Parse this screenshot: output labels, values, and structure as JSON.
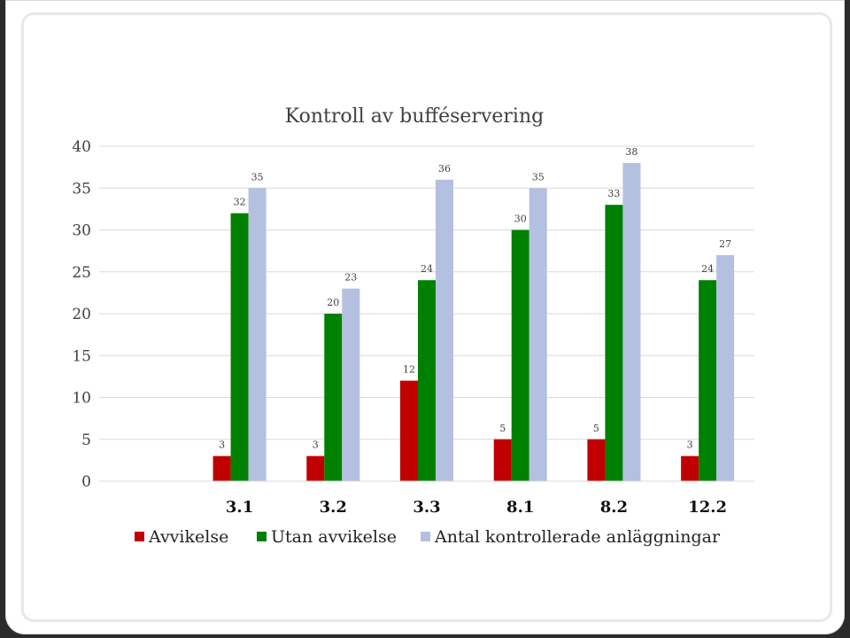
{
  "chart_data": {
    "type": "bar",
    "title": "Kontroll av bufféservering",
    "categories": [
      "3.1",
      "3.2",
      "3.3",
      "8.1",
      "8.2",
      "12.2"
    ],
    "series": [
      {
        "name": "Avvikelse",
        "color": "#c00000",
        "values": [
          3,
          3,
          12,
          5,
          5,
          3
        ]
      },
      {
        "name": "Utan avvikelse",
        "color": "#008000",
        "values": [
          32,
          20,
          24,
          30,
          33,
          24
        ]
      },
      {
        "name": "Antal kontrollerade anläggningar",
        "color": "#b4c0e0",
        "values": [
          35,
          23,
          36,
          35,
          38,
          27
        ]
      }
    ],
    "yticks": [
      0,
      5,
      10,
      15,
      20,
      25,
      30,
      35,
      40
    ],
    "ylim": [
      0,
      40
    ],
    "grid": true,
    "legend": "bottom",
    "data_labels": true
  }
}
